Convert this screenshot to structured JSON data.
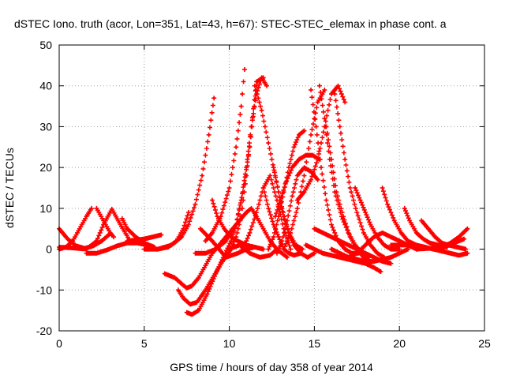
{
  "chart_data": {
    "type": "scatter",
    "title": "dSTEC Iono. truth (acor, Lon=351, Lat=43, h=67): STEC-STEC_elemax in phase cont. a",
    "xlabel": "GPS time / hours of day 358 of year 2014",
    "ylabel": "dSTEC  / TECUs",
    "xlim": [
      0,
      25
    ],
    "ylim": [
      -20,
      50
    ],
    "x_ticks": [
      0,
      5,
      10,
      15,
      20,
      25
    ],
    "y_ticks": [
      -20,
      -10,
      0,
      10,
      20,
      30,
      40,
      50
    ],
    "grid": true,
    "legend": "none",
    "marker": "+",
    "color": "#ff0000",
    "series": [
      {
        "x": [
          0.0,
          0.5,
          1.0,
          1.5,
          2.0,
          2.5,
          3.0
        ],
        "y": [
          5.0,
          2.5,
          0.8,
          0.2,
          0.8,
          2.0,
          3.8
        ]
      },
      {
        "x": [
          0.0,
          0.4,
          0.8,
          1.2,
          1.6,
          1.9
        ],
        "y": [
          0.0,
          0.5,
          2.0,
          5.0,
          8.0,
          10.0
        ]
      },
      {
        "x": [
          0.0,
          0.8,
          1.6,
          2.2,
          2.6,
          3.1,
          3.6,
          4.1
        ],
        "y": [
          0.5,
          0.3,
          0.0,
          2.0,
          6.0,
          9.8,
          6.0,
          2.5
        ]
      },
      {
        "x": [
          1.6,
          2.2,
          2.8,
          3.4,
          4.0,
          4.6,
          5.2
        ],
        "y": [
          -1.0,
          -1.0,
          -0.2,
          0.8,
          1.5,
          1.5,
          1.0
        ]
      },
      {
        "x": [
          3.7,
          4.0,
          4.5,
          5.0,
          5.6
        ],
        "y": [
          7.5,
          5.0,
          3.0,
          1.5,
          0.5
        ]
      },
      {
        "x": [
          2.2,
          2.6,
          3.0,
          3.2
        ],
        "y": [
          10.0,
          7.0,
          4.0,
          3.0
        ]
      },
      {
        "x": [
          4.0,
          5.0,
          5.5,
          6.0
        ],
        "y": [
          2.0,
          2.5,
          3.0,
          3.5
        ]
      },
      {
        "x": [
          5.0,
          5.8,
          6.6,
          7.2,
          7.6,
          8.0,
          8.4,
          8.8,
          9.1
        ],
        "y": [
          0.0,
          0.0,
          1.0,
          3.0,
          6.0,
          11.0,
          18.0,
          28.0,
          37.0
        ]
      },
      {
        "x": [
          5.8,
          6.4,
          6.9,
          7.3,
          7.6
        ],
        "y": [
          0.0,
          0.5,
          2.0,
          5.0,
          9.0
        ]
      },
      {
        "x": [
          6.2,
          6.8,
          7.2,
          7.5,
          7.8,
          8.2,
          8.6,
          9.0,
          9.4,
          9.8,
          10.2,
          10.6,
          10.8,
          11.0,
          11.3,
          11.6,
          12.0,
          12.4,
          12.8,
          13.1,
          13.4
        ],
        "y": [
          -6.0,
          -7.0,
          -8.5,
          -9.5,
          -9.0,
          -7.0,
          -4.0,
          -1.0,
          1.0,
          3.0,
          5.0,
          7.0,
          8.0,
          9.0,
          10.0,
          8.0,
          5.0,
          2.0,
          0.0,
          -1.0,
          -2.0
        ]
      },
      {
        "x": [
          7.0,
          7.3,
          7.7,
          8.1,
          8.6,
          9.1,
          9.6,
          10.1,
          10.4,
          10.7,
          11.0,
          11.3,
          11.6,
          12.0
        ],
        "y": [
          -10.0,
          -12.0,
          -13.5,
          -13.0,
          -10.0,
          -6.5,
          -3.0,
          0.0,
          3.0,
          8.0,
          18.0,
          30.0,
          41.0,
          42.0
        ]
      },
      {
        "x": [
          7.5,
          7.8,
          8.2,
          8.7,
          9.2,
          9.7,
          10.1,
          10.4,
          10.7,
          11.0,
          11.3,
          11.6,
          11.9,
          12.2
        ],
        "y": [
          -15.5,
          -16.0,
          -15.0,
          -11.0,
          -6.0,
          -1.5,
          2.0,
          6.0,
          12.0,
          20.0,
          30.0,
          38.0,
          42.0,
          40.0
        ]
      },
      {
        "x": [
          8.0,
          8.6,
          9.2,
          9.8,
          10.4,
          10.8,
          11.2,
          11.6
        ],
        "y": [
          -1.0,
          -1.0,
          0.0,
          2.0,
          6.0,
          14.0,
          25.0,
          40.0
        ]
      },
      {
        "x": [
          8.6,
          9.0,
          9.5,
          10.0,
          10.4,
          10.7,
          10.9
        ],
        "y": [
          2.0,
          4.0,
          8.0,
          15.0,
          25.0,
          35.0,
          44.0
        ]
      },
      {
        "x": [
          9.0,
          9.3,
          9.7,
          10.1,
          10.5,
          11.0,
          11.5,
          12.0
        ],
        "y": [
          12.0,
          8.0,
          5.0,
          3.0,
          2.0,
          1.0,
          0.5,
          0.0
        ]
      },
      {
        "x": [
          8.3,
          9.0,
          9.8,
          10.5,
          11.0,
          11.5
        ],
        "y": [
          5.0,
          2.0,
          -2.0,
          -1.0,
          0.0,
          0.5
        ]
      },
      {
        "x": [
          10.0,
          10.6,
          11.2,
          11.8,
          12.4,
          12.8
        ],
        "y": [
          0.0,
          1.0,
          -1.0,
          -2.0,
          -1.5,
          0.0
        ]
      },
      {
        "x": [
          10.8,
          11.2,
          11.6,
          12.0,
          12.4,
          12.8,
          13.2,
          13.6
        ],
        "y": [
          0.0,
          4.0,
          9.0,
          15.0,
          18.0,
          12.0,
          5.0,
          0.0
        ]
      },
      {
        "x": [
          11.5,
          11.9,
          12.3,
          12.7,
          13.1,
          13.5,
          13.9,
          14.3
        ],
        "y": [
          40.0,
          34.0,
          26.0,
          18.0,
          10.0,
          4.0,
          1.0,
          0.0
        ]
      },
      {
        "x": [
          12.0,
          12.3,
          12.6,
          12.9,
          13.2,
          13.5,
          13.8,
          14.2
        ],
        "y": [
          15.0,
          10.0,
          6.0,
          3.0,
          0.0,
          -1.0,
          -1.5,
          -1.0
        ]
      },
      {
        "x": [
          12.3,
          12.6,
          12.9,
          13.2,
          13.5,
          13.8,
          14.1,
          14.4
        ],
        "y": [
          0.0,
          3.0,
          8.0,
          14.0,
          20.0,
          25.0,
          28.0,
          29.0
        ]
      },
      {
        "x": [
          12.6,
          12.9,
          13.2,
          13.5,
          13.8,
          14.2,
          14.6,
          15.0
        ],
        "y": [
          20.0,
          14.0,
          8.0,
          4.0,
          1.0,
          -1.0,
          -2.0,
          -1.0
        ]
      },
      {
        "x": [
          12.8,
          13.1,
          13.4,
          13.7,
          14.0,
          14.4,
          14.8,
          15.2
        ],
        "y": [
          -1.0,
          2.0,
          7.0,
          13.0,
          18.0,
          20.0,
          19.0,
          17.0
        ]
      },
      {
        "x": [
          12.7,
          13.0,
          13.3,
          13.7,
          14.1,
          14.5,
          14.9,
          15.3
        ],
        "y": [
          8.0,
          12.0,
          16.0,
          20.0,
          22.0,
          23.0,
          23.0,
          22.0
        ]
      },
      {
        "x": [
          13.2,
          13.6,
          14.0,
          14.4,
          14.8,
          15.2,
          15.6
        ],
        "y": [
          0.0,
          4.0,
          10.0,
          18.0,
          28.0,
          36.0,
          39.0
        ]
      },
      {
        "x": [
          14.0,
          14.4,
          14.8,
          15.2,
          15.6,
          16.0,
          16.4,
          16.8
        ],
        "y": [
          12.0,
          14.0,
          17.0,
          22.0,
          30.0,
          38.0,
          40.0,
          36.0
        ]
      },
      {
        "x": [
          14.8,
          15.1,
          15.4,
          15.7,
          16.0,
          16.4,
          16.8,
          17.2,
          17.6
        ],
        "y": [
          39.0,
          30.0,
          20.0,
          12.0,
          6.0,
          2.0,
          0.0,
          -1.0,
          -1.0
        ]
      },
      {
        "x": [
          15.3,
          15.6,
          15.9,
          16.2,
          16.6,
          17.0,
          17.4,
          17.8,
          18.2
        ],
        "y": [
          40.0,
          32.0,
          22.0,
          14.0,
          8.0,
          4.0,
          1.0,
          -1.0,
          -2.0
        ]
      },
      {
        "x": [
          15.7,
          16.0,
          16.3,
          16.7,
          17.1,
          17.5,
          17.9,
          18.3
        ],
        "y": [
          30.0,
          22.0,
          14.0,
          8.0,
          3.0,
          0.0,
          -2.0,
          -3.0
        ]
      },
      {
        "x": [
          16.2,
          16.5,
          16.8,
          17.1,
          17.5,
          17.9,
          18.3,
          18.7,
          19.1
        ],
        "y": [
          38.0,
          30.0,
          22.0,
          15.0,
          9.0,
          4.0,
          1.0,
          -1.0,
          -2.0
        ]
      },
      {
        "x": [
          14.5,
          15.0,
          15.5,
          16.0,
          16.5,
          17.0,
          17.5,
          18.0,
          18.5,
          18.9
        ],
        "y": [
          1.0,
          0.0,
          -1.0,
          -1.5,
          -2.0,
          -2.5,
          -3.0,
          -3.5,
          -4.5,
          -5.5
        ]
      },
      {
        "x": [
          15.0,
          15.5,
          16.0,
          16.5,
          17.0,
          17.5,
          18.0,
          18.5,
          19.0,
          19.5
        ],
        "y": [
          5.0,
          4.0,
          3.0,
          2.0,
          1.0,
          0.0,
          -1.0,
          -2.0,
          -3.0,
          -3.5
        ]
      },
      {
        "x": [
          16.0,
          16.5,
          17.0,
          17.5,
          18.0,
          18.5,
          19.0,
          19.5,
          20.0,
          20.5
        ],
        "y": [
          0.0,
          -1.0,
          -2.0,
          -2.5,
          -3.0,
          -3.0,
          -2.5,
          -2.0,
          -1.0,
          0.0
        ]
      },
      {
        "x": [
          17.4,
          17.7,
          18.0,
          18.3,
          18.7,
          19.1,
          19.5,
          20.0
        ],
        "y": [
          15.0,
          12.0,
          9.0,
          6.0,
          3.0,
          1.0,
          0.0,
          0.0
        ]
      },
      {
        "x": [
          17.0,
          17.5,
          18.0,
          18.5,
          19.0,
          19.5,
          20.0,
          20.5,
          21.0
        ],
        "y": [
          -2.0,
          -1.0,
          1.0,
          3.0,
          4.0,
          3.0,
          2.0,
          1.0,
          0.0
        ]
      },
      {
        "x": [
          19.0,
          19.3,
          19.7,
          20.1,
          20.5,
          21.0,
          21.5
        ],
        "y": [
          15.0,
          11.0,
          7.0,
          4.0,
          2.0,
          1.0,
          0.5
        ]
      },
      {
        "x": [
          20.3,
          20.6,
          21.0,
          21.4,
          21.8,
          22.3,
          22.8
        ],
        "y": [
          10.0,
          7.0,
          4.0,
          2.5,
          1.5,
          1.0,
          0.5
        ]
      },
      {
        "x": [
          21.3,
          21.7,
          22.1,
          22.5,
          22.9,
          23.4,
          23.9
        ],
        "y": [
          7.0,
          5.0,
          3.0,
          1.5,
          1.0,
          0.5,
          0.0
        ]
      },
      {
        "x": [
          19.5,
          20.5,
          21.5,
          22.5,
          23.0,
          23.5,
          24.0
        ],
        "y": [
          1.0,
          1.0,
          0.5,
          -0.5,
          -1.0,
          -1.5,
          -1.0
        ]
      },
      {
        "x": [
          21.0,
          21.8,
          22.5,
          23.0,
          23.5,
          24.0
        ],
        "y": [
          0.0,
          0.2,
          0.5,
          1.5,
          3.0,
          5.0
        ]
      },
      {
        "x": [
          22.0,
          22.6,
          23.2,
          23.8
        ],
        "y": [
          0.0,
          0.5,
          1.5,
          2.5
        ]
      }
    ]
  }
}
